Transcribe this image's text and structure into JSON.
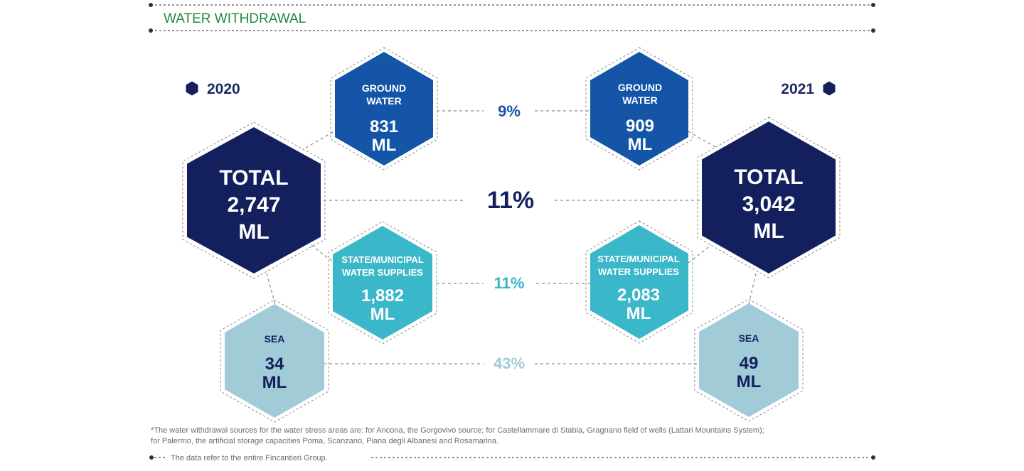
{
  "title": "WATER WITHDRAWAL",
  "years": {
    "left": "2020",
    "right": "2021"
  },
  "colors": {
    "total": "#14205e",
    "ground": "#1455a8",
    "municipal": "#3ab7c8",
    "sea": "#a1cbd6",
    "title": "#1f8a3c"
  },
  "y2020": {
    "total": {
      "label": "TOTAL",
      "value": "2,747",
      "unit": "ML"
    },
    "ground": {
      "label1": "GROUND",
      "label2": "WATER",
      "value": "831",
      "unit": "ML"
    },
    "municipal": {
      "label1": "STATE/MUNICIPAL",
      "label2": "WATER SUPPLIES",
      "value": "1,882",
      "unit": "ML"
    },
    "sea": {
      "label": "SEA",
      "value": "34",
      "unit": "ML"
    }
  },
  "y2021": {
    "total": {
      "label": "TOTAL",
      "value": "3,042",
      "unit": "ML"
    },
    "ground": {
      "label1": "GROUND",
      "label2": "WATER",
      "value": "909",
      "unit": "ML"
    },
    "municipal": {
      "label1": "STATE/MUNICIPAL",
      "label2": "WATER SUPPLIES",
      "value": "2,083",
      "unit": "ML"
    },
    "sea": {
      "label": "SEA",
      "value": "49",
      "unit": "ML"
    }
  },
  "changes": {
    "ground": "9%",
    "total": "11%",
    "municipal": "11%",
    "sea": "43%"
  },
  "footnote": {
    "line1": "*The water withdrawal sources for the water stress areas are: for Ancona, the Gorgovivo source; for Castellammare di Stabia, Gragnano field of wells (Lattari Mountains System);",
    "line2": "for Palermo, the artificial storage capacities Poma, Scanzano, Piana degli Albanesi and Rosamarina."
  },
  "bottom_note": "The data refer to the entire Fincantieri Group."
}
